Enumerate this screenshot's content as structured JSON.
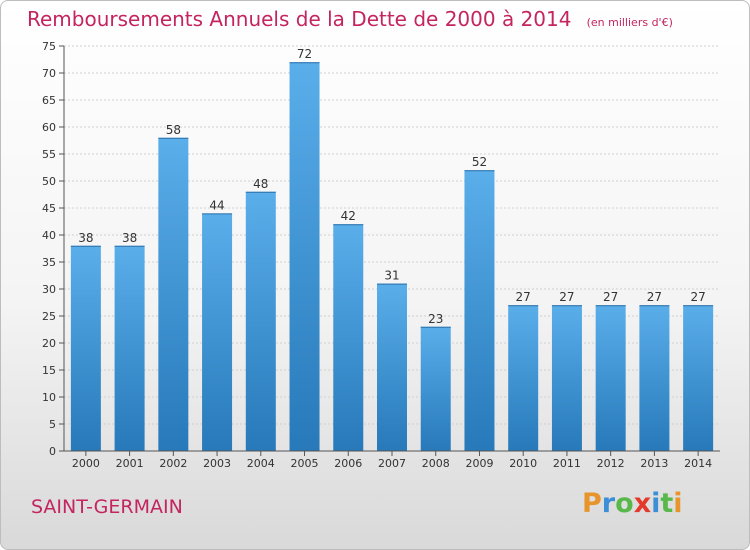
{
  "header": {
    "title": "Remboursements Annuels de la Dette de 2000 à 2014",
    "subtitle": "(en milliers d'€)"
  },
  "footer": {
    "location": "SAINT-GERMAIN",
    "brand": "Proxiti"
  },
  "colors": {
    "accent": "#c4245f",
    "bar_top": "#5aaeea",
    "bar_bottom": "#2779b9",
    "logo_letters": [
      "#e8942c",
      "#3a8fd6",
      "#58b84a",
      "#e33a2c",
      "#3a8fd6",
      "#58b84a",
      "#e8942c"
    ]
  },
  "chart_data": {
    "type": "bar",
    "categories": [
      "2000",
      "2001",
      "2002",
      "2003",
      "2004",
      "2005",
      "2006",
      "2007",
      "2008",
      "2009",
      "2010",
      "2011",
      "2012",
      "2013",
      "2014"
    ],
    "values": [
      38,
      38,
      58,
      44,
      48,
      72,
      42,
      31,
      23,
      52,
      27,
      27,
      27,
      27,
      27
    ],
    "ylim": [
      0,
      75
    ],
    "yticks": [
      0,
      5,
      10,
      15,
      20,
      25,
      30,
      35,
      40,
      45,
      50,
      55,
      60,
      65,
      70,
      75
    ],
    "grid": true,
    "data_labels": true
  }
}
